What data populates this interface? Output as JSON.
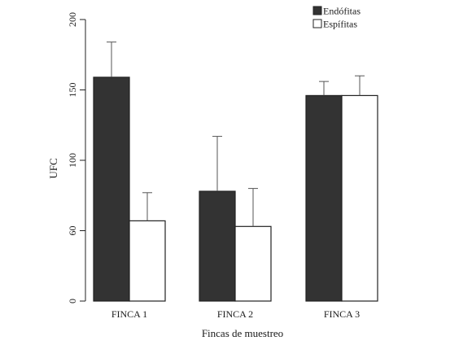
{
  "chart_data": {
    "type": "bar",
    "title": "",
    "xlabel": "Fincas de muestreo",
    "ylabel": "UFC",
    "categories": [
      "FINCA 1",
      "FINCA 2",
      "FINCA 3"
    ],
    "ylim": [
      0,
      200
    ],
    "yticks": [
      0,
      60,
      100,
      150,
      200
    ],
    "yticks_note": "tick labels as printed; axis is linear 0-200 with evenly spaced ticks at 0,50,100,150,200 but the second tick is printed as 60",
    "ytick_labels": [
      "0",
      "60",
      "100",
      "150",
      "200"
    ],
    "series": [
      {
        "name": "Endófitas",
        "color": "#333333",
        "values": [
          159,
          78,
          146
        ],
        "errors": [
          25,
          39,
          10
        ]
      },
      {
        "name": "Espífitas",
        "color": "#ffffff",
        "values": [
          57,
          53,
          146
        ],
        "errors": [
          20,
          27,
          14
        ]
      }
    ],
    "legend_position": "top-right",
    "grid": false
  }
}
